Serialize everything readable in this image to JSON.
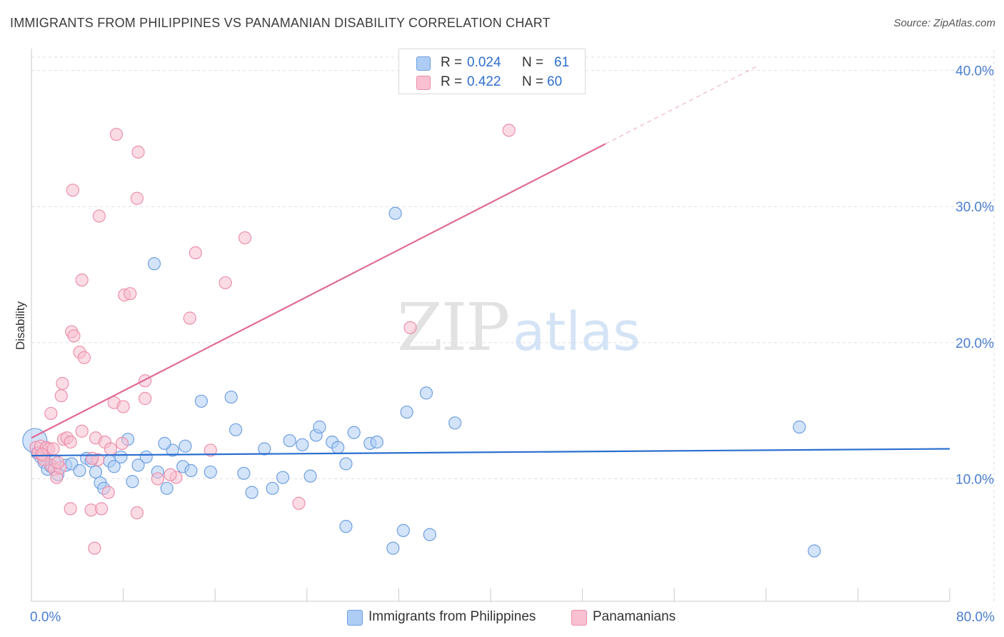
{
  "header": {
    "title": "IMMIGRANTS FROM PHILIPPINES VS PANAMANIAN DISABILITY CORRELATION CHART",
    "source": "Source: ZipAtlas.com"
  },
  "watermark": {
    "zip": "ZIP",
    "atlas": "atlas"
  },
  "colors": {
    "blue_fill": "#aecdf5",
    "blue_stroke": "#6f9fe0",
    "blue_line": "#2b6fcf",
    "pink_fill": "#f8c0d0",
    "pink_stroke": "#ec8fab",
    "pink_line": "#e06b95",
    "tick_label": "#4a7ecf",
    "grid": "#dedede"
  },
  "legend": {
    "rows": [
      {
        "r_label": "R =",
        "r_value": "0.024",
        "n_label": "N =",
        "n_value": "61"
      },
      {
        "r_label": "R =",
        "r_value": "0.422",
        "n_label": "N =",
        "n_value": "60"
      }
    ]
  },
  "chart_data": {
    "type": "scatter",
    "title": "IMMIGRANTS FROM PHILIPPINES VS PANAMANIAN DISABILITY CORRELATION CHART",
    "xlabel": "",
    "ylabel": "Disability",
    "xlim": [
      0,
      80
    ],
    "ylim": [
      1.0,
      41.5
    ],
    "x_tick_labels": [
      "0.0%",
      "80.0%"
    ],
    "y_ticks": [
      10,
      20,
      30,
      40
    ],
    "y_tick_labels": [
      "10.0%",
      "20.0%",
      "30.0%",
      "40.0%"
    ],
    "grid": "horizontal dashed",
    "legend_position": "top-center",
    "series": [
      {
        "name": "Immigrants from Philippines",
        "color": "#aecdf5",
        "trend": {
          "x": [
            0,
            80
          ],
          "y": [
            11.7,
            12.2
          ]
        },
        "points": [
          [
            0.3,
            12.8
          ],
          [
            0.5,
            11.9
          ],
          [
            0.8,
            11.6
          ],
          [
            1.1,
            11.2
          ],
          [
            1.4,
            10.7
          ],
          [
            1.7,
            10.9
          ],
          [
            2.0,
            11.3
          ],
          [
            2.3,
            10.3
          ],
          [
            3.0,
            11.0
          ],
          [
            3.5,
            11.1
          ],
          [
            4.2,
            10.6
          ],
          [
            4.8,
            11.5
          ],
          [
            5.2,
            11.3
          ],
          [
            5.6,
            10.5
          ],
          [
            6.0,
            9.7
          ],
          [
            6.3,
            9.3
          ],
          [
            6.8,
            11.3
          ],
          [
            7.2,
            10.9
          ],
          [
            7.8,
            11.6
          ],
          [
            8.4,
            12.9
          ],
          [
            8.8,
            9.8
          ],
          [
            10.0,
            11.6
          ],
          [
            11.0,
            10.5
          ],
          [
            11.8,
            9.3
          ],
          [
            12.3,
            12.1
          ],
          [
            13.2,
            10.9
          ],
          [
            13.9,
            10.6
          ],
          [
            14.8,
            15.7
          ],
          [
            15.6,
            10.5
          ],
          [
            17.4,
            16.0
          ],
          [
            17.8,
            13.6
          ],
          [
            18.5,
            10.4
          ],
          [
            19.2,
            9.0
          ],
          [
            20.3,
            12.2
          ],
          [
            21.0,
            9.3
          ],
          [
            21.9,
            10.1
          ],
          [
            22.5,
            12.8
          ],
          [
            23.6,
            12.5
          ],
          [
            24.3,
            10.2
          ],
          [
            24.8,
            13.2
          ],
          [
            25.1,
            13.8
          ],
          [
            26.2,
            12.7
          ],
          [
            26.7,
            12.3
          ],
          [
            27.4,
            11.1
          ],
          [
            28.1,
            13.4
          ],
          [
            29.5,
            12.6
          ],
          [
            30.1,
            12.7
          ],
          [
            31.7,
            29.5
          ],
          [
            32.7,
            14.9
          ],
          [
            34.4,
            16.3
          ],
          [
            36.9,
            14.1
          ],
          [
            13.4,
            12.4
          ],
          [
            11.6,
            12.6
          ],
          [
            10.7,
            25.8
          ],
          [
            27.4,
            6.5
          ],
          [
            31.5,
            4.9
          ],
          [
            32.4,
            6.2
          ],
          [
            34.7,
            5.9
          ],
          [
            68.2,
            4.7
          ],
          [
            66.9,
            13.8
          ],
          [
            9.3,
            11.0
          ]
        ]
      },
      {
        "name": "Panamanians",
        "color": "#f8c0d0",
        "trend": {
          "x": [
            0,
            50
          ],
          "y": [
            13.0,
            34.6
          ]
        },
        "trend_ext": {
          "x": [
            50,
            63.2
          ],
          "y": [
            34.6,
            40.3
          ]
        },
        "points": [
          [
            0.4,
            12.3
          ],
          [
            0.6,
            11.9
          ],
          [
            0.8,
            12.4
          ],
          [
            1.0,
            11.7
          ],
          [
            1.3,
            12.3
          ],
          [
            1.5,
            12.2
          ],
          [
            1.7,
            11.0
          ],
          [
            2.0,
            10.7
          ],
          [
            2.2,
            10.1
          ],
          [
            2.5,
            10.8
          ],
          [
            2.8,
            12.9
          ],
          [
            3.1,
            13.0
          ],
          [
            3.4,
            12.7
          ],
          [
            2.6,
            16.1
          ],
          [
            2.7,
            17.0
          ],
          [
            3.5,
            20.8
          ],
          [
            3.7,
            20.5
          ],
          [
            4.2,
            19.3
          ],
          [
            4.6,
            18.9
          ],
          [
            4.4,
            24.6
          ],
          [
            3.6,
            31.2
          ],
          [
            5.9,
            29.3
          ],
          [
            7.4,
            35.3
          ],
          [
            9.3,
            34.0
          ],
          [
            9.2,
            30.6
          ],
          [
            8.1,
            23.5
          ],
          [
            8.6,
            23.6
          ],
          [
            9.9,
            17.2
          ],
          [
            9.9,
            15.9
          ],
          [
            14.3,
            26.6
          ],
          [
            16.9,
            24.4
          ],
          [
            18.6,
            27.7
          ],
          [
            13.8,
            21.8
          ],
          [
            7.2,
            15.6
          ],
          [
            8.0,
            15.3
          ],
          [
            5.6,
            13.0
          ],
          [
            4.4,
            13.5
          ],
          [
            6.4,
            12.7
          ],
          [
            6.9,
            12.2
          ],
          [
            7.9,
            12.6
          ],
          [
            5.8,
            11.4
          ],
          [
            5.3,
            11.5
          ],
          [
            12.6,
            10.1
          ],
          [
            12.1,
            10.3
          ],
          [
            15.6,
            12.1
          ],
          [
            23.3,
            8.2
          ],
          [
            33.0,
            21.1
          ],
          [
            41.6,
            35.6
          ],
          [
            3.4,
            7.8
          ],
          [
            5.2,
            7.7
          ],
          [
            6.1,
            7.8
          ],
          [
            6.7,
            9.0
          ],
          [
            9.2,
            7.5
          ],
          [
            5.5,
            4.9
          ],
          [
            1.7,
            14.8
          ],
          [
            11.0,
            10.0
          ],
          [
            1.1,
            11.4
          ],
          [
            0.9,
            11.8
          ],
          [
            2.3,
            11.2
          ],
          [
            1.9,
            12.2
          ]
        ]
      }
    ]
  },
  "bottom_legend": {
    "items": [
      {
        "label": "Immigrants from Philippines"
      },
      {
        "label": "Panamanians"
      }
    ]
  }
}
